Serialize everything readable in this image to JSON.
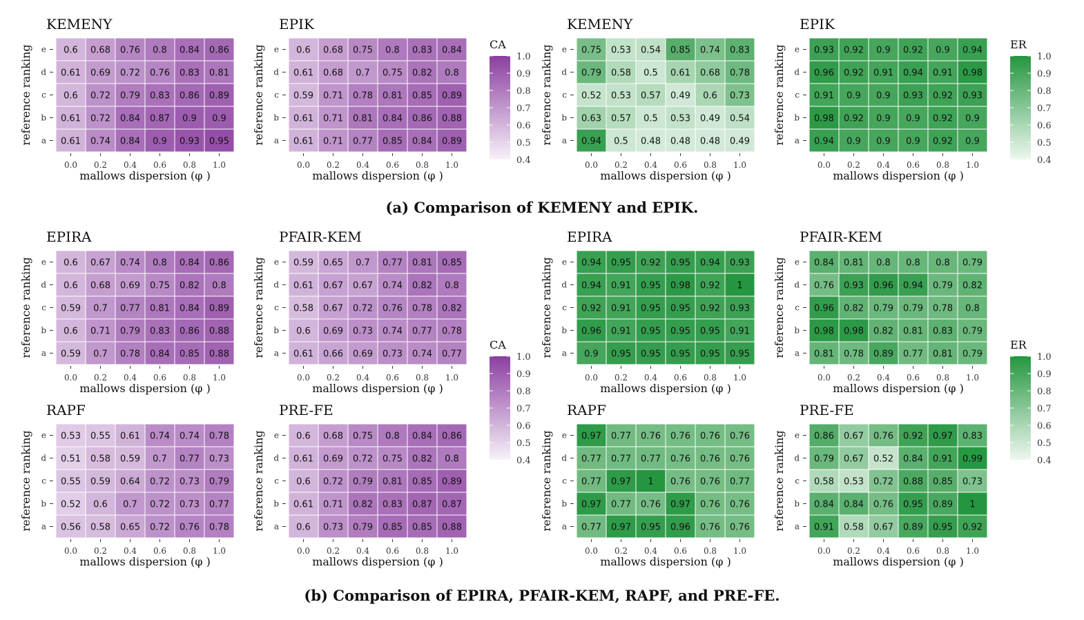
{
  "captions": {
    "a": "(a) Comparison of KEMENY and EPIK.",
    "b": "(b) Comparison of EPIRA, PFAIR-KEM, RAPF, and PRE-FE."
  },
  "colors": {
    "purple_low": "#f7f1f9",
    "purple_high": "#8b3fa0",
    "green_low": "#eef7ef",
    "green_high": "#24963f",
    "cell_border": "#ffffff",
    "text": "#111111"
  },
  "axis": {
    "xlabel": "mallows dispersion (φ )",
    "ylabel": "reference ranking",
    "xticks": [
      "0.0",
      "0.2",
      "0.4",
      "0.6",
      "0.8",
      "1.0"
    ],
    "yticks": [
      "e",
      "d",
      "c",
      "b",
      "a"
    ]
  },
  "legends": [
    {
      "title": "CA",
      "palette": "purple",
      "ticks": [
        "1.0",
        "0.9",
        "0.8",
        "0.7",
        "0.6",
        "0.5",
        "0.4"
      ],
      "range": [
        0.4,
        1.0
      ]
    },
    {
      "title": "ER",
      "palette": "green",
      "ticks": [
        "1.0",
        "0.9",
        "0.8",
        "0.7",
        "0.6",
        "0.5",
        "0.4"
      ],
      "range": [
        0.4,
        1.0
      ]
    },
    {
      "title": "CA",
      "palette": "purple",
      "ticks": [
        "1.0",
        "0.9",
        "0.8",
        "0.7",
        "0.6",
        "0.5",
        "0.4"
      ],
      "range": [
        0.4,
        1.0
      ]
    },
    {
      "title": "ER",
      "palette": "green",
      "ticks": [
        "1.0",
        "0.9",
        "0.8",
        "0.7",
        "0.6",
        "0.5",
        "0.4"
      ],
      "range": [
        0.4,
        1.0
      ]
    }
  ],
  "chart_data": [
    {
      "type": "heatmap",
      "title": "KEMENY",
      "metric": "CA",
      "palette": "purple",
      "xlabel": "mallows dispersion (φ )",
      "ylabel": "reference ranking",
      "x": [
        "0.0",
        "0.2",
        "0.4",
        "0.6",
        "0.8",
        "1.0"
      ],
      "y": [
        "e",
        "d",
        "c",
        "b",
        "a"
      ],
      "values": [
        [
          0.6,
          0.68,
          0.76,
          0.8,
          0.84,
          0.86
        ],
        [
          0.61,
          0.69,
          0.72,
          0.76,
          0.83,
          0.81
        ],
        [
          0.6,
          0.72,
          0.79,
          0.83,
          0.86,
          0.89
        ],
        [
          0.61,
          0.72,
          0.84,
          0.87,
          0.9,
          0.9
        ],
        [
          0.61,
          0.74,
          0.84,
          0.9,
          0.93,
          0.95
        ]
      ]
    },
    {
      "type": "heatmap",
      "title": "EPIK",
      "metric": "CA",
      "palette": "purple",
      "xlabel": "mallows dispersion (φ )",
      "ylabel": "reference ranking",
      "x": [
        "0.0",
        "0.2",
        "0.4",
        "0.6",
        "0.8",
        "1.0"
      ],
      "y": [
        "e",
        "d",
        "c",
        "b",
        "a"
      ],
      "values": [
        [
          0.6,
          0.68,
          0.75,
          0.8,
          0.83,
          0.84
        ],
        [
          0.61,
          0.68,
          0.7,
          0.75,
          0.82,
          0.8
        ],
        [
          0.59,
          0.71,
          0.78,
          0.81,
          0.85,
          0.89
        ],
        [
          0.61,
          0.71,
          0.81,
          0.84,
          0.86,
          0.88
        ],
        [
          0.61,
          0.71,
          0.77,
          0.85,
          0.84,
          0.89
        ]
      ]
    },
    {
      "type": "heatmap",
      "title": "KEMENY",
      "metric": "ER",
      "palette": "green",
      "xlabel": "mallows dispersion (φ )",
      "ylabel": "reference ranking",
      "x": [
        "0.0",
        "0.2",
        "0.4",
        "0.6",
        "0.8",
        "1.0"
      ],
      "y": [
        "e",
        "d",
        "c",
        "b",
        "a"
      ],
      "values": [
        [
          0.75,
          0.53,
          0.54,
          0.85,
          0.74,
          0.83
        ],
        [
          0.79,
          0.58,
          0.5,
          0.61,
          0.68,
          0.78
        ],
        [
          0.52,
          0.53,
          0.57,
          0.49,
          0.6,
          0.73
        ],
        [
          0.63,
          0.57,
          0.5,
          0.53,
          0.49,
          0.54
        ],
        [
          0.94,
          0.5,
          0.48,
          0.48,
          0.48,
          0.49
        ]
      ]
    },
    {
      "type": "heatmap",
      "title": "EPIK",
      "metric": "ER",
      "palette": "green",
      "xlabel": "mallows dispersion (φ )",
      "ylabel": "reference ranking",
      "x": [
        "0.0",
        "0.2",
        "0.4",
        "0.6",
        "0.8",
        "1.0"
      ],
      "y": [
        "e",
        "d",
        "c",
        "b",
        "a"
      ],
      "values": [
        [
          0.93,
          0.92,
          0.9,
          0.92,
          0.9,
          0.94
        ],
        [
          0.96,
          0.92,
          0.91,
          0.94,
          0.91,
          0.98
        ],
        [
          0.91,
          0.9,
          0.9,
          0.93,
          0.92,
          0.93
        ],
        [
          0.98,
          0.92,
          0.9,
          0.9,
          0.92,
          0.9
        ],
        [
          0.94,
          0.9,
          0.9,
          0.9,
          0.92,
          0.9
        ]
      ]
    },
    {
      "type": "heatmap",
      "title": "EPIRA",
      "metric": "CA",
      "palette": "purple",
      "xlabel": "mallows dispersion (φ )",
      "ylabel": "reference ranking",
      "x": [
        "0.0",
        "0.2",
        "0.4",
        "0.6",
        "0.8",
        "1.0"
      ],
      "y": [
        "e",
        "d",
        "c",
        "b",
        "a"
      ],
      "values": [
        [
          0.6,
          0.67,
          0.74,
          0.8,
          0.84,
          0.86
        ],
        [
          0.6,
          0.68,
          0.69,
          0.75,
          0.82,
          0.8
        ],
        [
          0.59,
          0.7,
          0.77,
          0.81,
          0.84,
          0.89
        ],
        [
          0.6,
          0.71,
          0.79,
          0.83,
          0.86,
          0.88
        ],
        [
          0.59,
          0.7,
          0.78,
          0.84,
          0.85,
          0.88
        ]
      ]
    },
    {
      "type": "heatmap",
      "title": "PFAIR-KEM",
      "metric": "CA",
      "palette": "purple",
      "xlabel": "mallows dispersion (φ )",
      "ylabel": "reference ranking",
      "x": [
        "0.0",
        "0.2",
        "0.4",
        "0.6",
        "0.8",
        "1.0"
      ],
      "y": [
        "e",
        "d",
        "c",
        "b",
        "a"
      ],
      "values": [
        [
          0.59,
          0.65,
          0.7,
          0.77,
          0.81,
          0.85
        ],
        [
          0.61,
          0.67,
          0.67,
          0.74,
          0.82,
          0.8
        ],
        [
          0.58,
          0.67,
          0.72,
          0.76,
          0.78,
          0.82
        ],
        [
          0.6,
          0.69,
          0.73,
          0.74,
          0.77,
          0.78
        ],
        [
          0.61,
          0.66,
          0.69,
          0.73,
          0.74,
          0.77
        ]
      ]
    },
    {
      "type": "heatmap",
      "title": "EPIRA",
      "metric": "ER",
      "palette": "green",
      "xlabel": "mallows dispersion (φ )",
      "ylabel": "reference ranking",
      "x": [
        "0.0",
        "0.2",
        "0.4",
        "0.6",
        "0.8",
        "1.0"
      ],
      "y": [
        "e",
        "d",
        "c",
        "b",
        "a"
      ],
      "values": [
        [
          0.94,
          0.95,
          0.92,
          0.95,
          0.94,
          0.93
        ],
        [
          0.94,
          0.91,
          0.95,
          0.98,
          0.92,
          1
        ],
        [
          0.92,
          0.91,
          0.95,
          0.95,
          0.92,
          0.93
        ],
        [
          0.96,
          0.91,
          0.95,
          0.95,
          0.95,
          0.91
        ],
        [
          0.9,
          0.95,
          0.95,
          0.95,
          0.95,
          0.95
        ]
      ]
    },
    {
      "type": "heatmap",
      "title": "PFAIR-KEM",
      "metric": "ER",
      "palette": "green",
      "xlabel": "mallows dispersion (φ )",
      "ylabel": "reference ranking",
      "x": [
        "0.0",
        "0.2",
        "0.4",
        "0.6",
        "0.8",
        "1.0"
      ],
      "y": [
        "e",
        "d",
        "c",
        "b",
        "a"
      ],
      "values": [
        [
          0.84,
          0.81,
          0.8,
          0.8,
          0.8,
          0.79
        ],
        [
          0.76,
          0.93,
          0.96,
          0.94,
          0.79,
          0.82
        ],
        [
          0.96,
          0.82,
          0.79,
          0.79,
          0.78,
          0.8
        ],
        [
          0.98,
          0.98,
          0.82,
          0.81,
          0.83,
          0.79
        ],
        [
          0.81,
          0.78,
          0.89,
          0.77,
          0.81,
          0.79
        ]
      ]
    },
    {
      "type": "heatmap",
      "title": "RAPF",
      "metric": "CA",
      "palette": "purple",
      "xlabel": "mallows dispersion (φ )",
      "ylabel": "reference ranking",
      "x": [
        "0.0",
        "0.2",
        "0.4",
        "0.6",
        "0.8",
        "1.0"
      ],
      "y": [
        "e",
        "d",
        "c",
        "b",
        "a"
      ],
      "values": [
        [
          0.53,
          0.55,
          0.61,
          0.74,
          0.74,
          0.78
        ],
        [
          0.51,
          0.58,
          0.59,
          0.7,
          0.77,
          0.73
        ],
        [
          0.55,
          0.59,
          0.64,
          0.72,
          0.73,
          0.79
        ],
        [
          0.52,
          0.6,
          0.7,
          0.72,
          0.73,
          0.77
        ],
        [
          0.56,
          0.58,
          0.65,
          0.72,
          0.76,
          0.78
        ]
      ]
    },
    {
      "type": "heatmap",
      "title": "PRE-FE",
      "metric": "CA",
      "palette": "purple",
      "xlabel": "mallows dispersion (φ )",
      "ylabel": "reference ranking",
      "x": [
        "0.0",
        "0.2",
        "0.4",
        "0.6",
        "0.8",
        "1.0"
      ],
      "y": [
        "e",
        "d",
        "c",
        "b",
        "a"
      ],
      "values": [
        [
          0.6,
          0.68,
          0.75,
          0.8,
          0.84,
          0.86
        ],
        [
          0.61,
          0.69,
          0.72,
          0.75,
          0.82,
          0.8
        ],
        [
          0.6,
          0.72,
          0.79,
          0.81,
          0.85,
          0.89
        ],
        [
          0.61,
          0.71,
          0.82,
          0.83,
          0.87,
          0.87
        ],
        [
          0.6,
          0.73,
          0.79,
          0.85,
          0.85,
          0.88
        ]
      ]
    },
    {
      "type": "heatmap",
      "title": "RAPF",
      "metric": "ER",
      "palette": "green",
      "xlabel": "mallows dispersion (φ )",
      "ylabel": "reference ranking",
      "x": [
        "0.0",
        "0.2",
        "0.4",
        "0.6",
        "0.8",
        "1.0"
      ],
      "y": [
        "e",
        "d",
        "c",
        "b",
        "a"
      ],
      "values": [
        [
          0.97,
          0.77,
          0.76,
          0.76,
          0.76,
          0.76
        ],
        [
          0.77,
          0.77,
          0.77,
          0.76,
          0.76,
          0.76
        ],
        [
          0.77,
          0.97,
          1,
          0.76,
          0.76,
          0.77
        ],
        [
          0.97,
          0.77,
          0.76,
          0.97,
          0.76,
          0.76
        ],
        [
          0.77,
          0.97,
          0.95,
          0.96,
          0.76,
          0.76
        ]
      ]
    },
    {
      "type": "heatmap",
      "title": "PRE-FE",
      "metric": "ER",
      "palette": "green",
      "xlabel": "mallows dispersion (φ )",
      "ylabel": "reference ranking",
      "x": [
        "0.0",
        "0.2",
        "0.4",
        "0.6",
        "0.8",
        "1.0"
      ],
      "y": [
        "e",
        "d",
        "c",
        "b",
        "a"
      ],
      "values": [
        [
          0.86,
          0.67,
          0.76,
          0.92,
          0.97,
          0.83
        ],
        [
          0.79,
          0.67,
          0.52,
          0.84,
          0.91,
          0.99
        ],
        [
          0.58,
          0.53,
          0.72,
          0.88,
          0.85,
          0.73
        ],
        [
          0.84,
          0.84,
          0.76,
          0.95,
          0.89,
          1
        ],
        [
          0.91,
          0.58,
          0.67,
          0.89,
          0.95,
          0.92
        ]
      ]
    }
  ]
}
